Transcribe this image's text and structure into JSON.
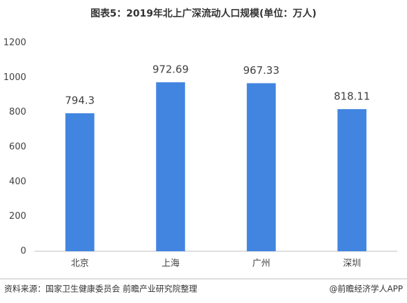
{
  "chart_data": {
    "type": "bar",
    "title": "图表5：2019年北上广深流动人口规模(单位：万人)",
    "categories": [
      "北京",
      "上海",
      "广州",
      "深圳"
    ],
    "values": [
      794.3,
      972.69,
      967.33,
      818.11
    ],
    "color": "#4285e0",
    "ylim": [
      0,
      1200
    ],
    "yticks": [
      0,
      200,
      400,
      600,
      800,
      1000,
      1200
    ],
    "grid": false,
    "source": "资料来源：国家卫生健康委员会 前瞻产业研究院整理",
    "credit": "@前瞻经济学人APP"
  }
}
